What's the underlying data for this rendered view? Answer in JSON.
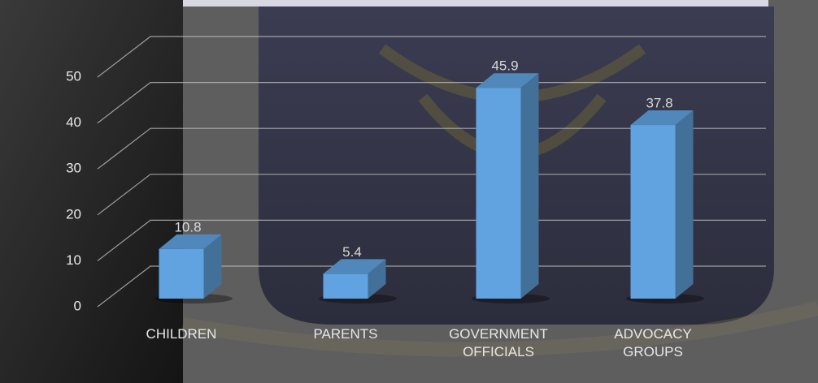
{
  "chart_data": {
    "type": "bar3d",
    "categories": [
      "CHILDREN",
      "PARENTS",
      "GOVERNMENT OFFICIALS",
      "ADVOCACY GROUPS"
    ],
    "values": [
      10.8,
      5.4,
      45.9,
      37.8
    ],
    "color": "#5b9bd5",
    "ylim": [
      0,
      50
    ],
    "yticks": [
      0,
      10,
      20,
      30,
      40,
      50
    ],
    "grid": true
  }
}
